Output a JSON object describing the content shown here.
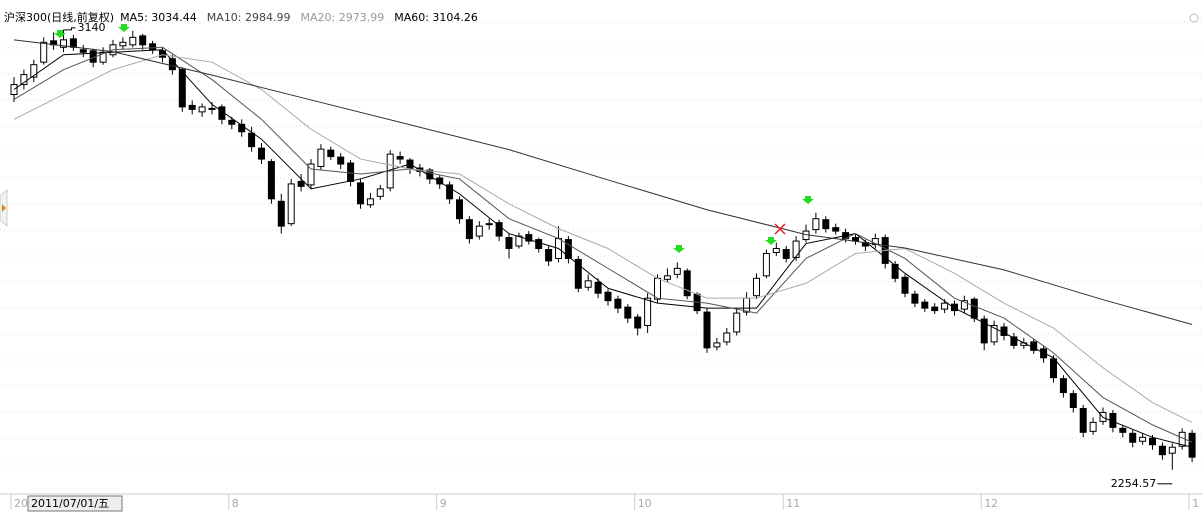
{
  "chart_data": {
    "type": "candlestick",
    "title": "沪深300(日线,前复权)",
    "cursor_label": "2011/07/01/五",
    "categories": [
      "20",
      null,
      null,
      null,
      null,
      null,
      null,
      null,
      null,
      null,
      null,
      null,
      null,
      null,
      null,
      null,
      null,
      null,
      null,
      null,
      null,
      null,
      "8",
      null,
      null,
      null,
      null,
      null,
      null,
      null,
      null,
      null,
      null,
      null,
      null,
      null,
      null,
      null,
      null,
      null,
      null,
      null,
      null,
      "9",
      null,
      null,
      null,
      null,
      null,
      null,
      null,
      null,
      null,
      null,
      null,
      null,
      null,
      null,
      null,
      null,
      null,
      null,
      null,
      "10",
      null,
      null,
      null,
      null,
      null,
      null,
      null,
      null,
      null,
      null,
      null,
      null,
      null,
      null,
      "11",
      null,
      null,
      null,
      null,
      null,
      null,
      null,
      null,
      null,
      null,
      null,
      null,
      null,
      null,
      null,
      null,
      null,
      null,
      null,
      "12",
      null,
      null,
      null,
      null,
      null,
      null,
      null,
      null,
      null,
      null,
      null,
      null,
      null,
      null,
      null,
      null,
      null,
      null,
      null,
      null,
      "1"
    ],
    "candles": [
      [
        3010,
        3045,
        2995,
        3030
      ],
      [
        3030,
        3060,
        3020,
        3050
      ],
      [
        3045,
        3080,
        3035,
        3070
      ],
      [
        3075,
        3125,
        3070,
        3115
      ],
      [
        3118,
        3135,
        3100,
        3110
      ],
      [
        3105,
        3140,
        3095,
        3120
      ],
      [
        3122,
        3130,
        3098,
        3105
      ],
      [
        3100,
        3110,
        3085,
        3095
      ],
      [
        3098,
        3102,
        3065,
        3075
      ],
      [
        3075,
        3105,
        3070,
        3095
      ],
      [
        3090,
        3120,
        3085,
        3110
      ],
      [
        3108,
        3125,
        3100,
        3115
      ],
      [
        3110,
        3138,
        3105,
        3125
      ],
      [
        3128,
        3132,
        3100,
        3110
      ],
      [
        3112,
        3118,
        3092,
        3100
      ],
      [
        3098,
        3105,
        3075,
        3085
      ],
      [
        3082,
        3090,
        3050,
        3060
      ],
      [
        3060,
        3065,
        2975,
        2985
      ],
      [
        2988,
        2998,
        2970,
        2980
      ],
      [
        2975,
        2992,
        2965,
        2985
      ],
      [
        2982,
        2995,
        2970,
        2980
      ],
      [
        2985,
        2990,
        2950,
        2960
      ],
      [
        2958,
        2965,
        2940,
        2950
      ],
      [
        2950,
        2960,
        2925,
        2935
      ],
      [
        2932,
        2945,
        2895,
        2905
      ],
      [
        2902,
        2912,
        2870,
        2880
      ],
      [
        2875,
        2880,
        2790,
        2800
      ],
      [
        2795,
        2810,
        2730,
        2745
      ],
      [
        2750,
        2840,
        2745,
        2830
      ],
      [
        2835,
        2850,
        2815,
        2825
      ],
      [
        2828,
        2880,
        2820,
        2870
      ],
      [
        2865,
        2910,
        2858,
        2900
      ],
      [
        2898,
        2905,
        2878,
        2885
      ],
      [
        2884,
        2892,
        2860,
        2870
      ],
      [
        2872,
        2878,
        2825,
        2835
      ],
      [
        2832,
        2840,
        2780,
        2790
      ],
      [
        2788,
        2812,
        2782,
        2800
      ],
      [
        2805,
        2828,
        2798,
        2820
      ],
      [
        2822,
        2898,
        2815,
        2890
      ],
      [
        2885,
        2895,
        2870,
        2880
      ],
      [
        2878,
        2882,
        2850,
        2860
      ],
      [
        2862,
        2870,
        2845,
        2855
      ],
      [
        2858,
        2862,
        2830,
        2840
      ],
      [
        2842,
        2848,
        2820,
        2830
      ],
      [
        2828,
        2835,
        2790,
        2800
      ],
      [
        2798,
        2805,
        2750,
        2760
      ],
      [
        2758,
        2765,
        2710,
        2720
      ],
      [
        2725,
        2755,
        2718,
        2745
      ],
      [
        2748,
        2760,
        2738,
        2750
      ],
      [
        2752,
        2758,
        2715,
        2725
      ],
      [
        2722,
        2730,
        2680,
        2700
      ],
      [
        2705,
        2732,
        2700,
        2725
      ],
      [
        2728,
        2735,
        2708,
        2715
      ],
      [
        2718,
        2722,
        2692,
        2700
      ],
      [
        2698,
        2705,
        2665,
        2675
      ],
      [
        2680,
        2745,
        2672,
        2720
      ],
      [
        2718,
        2725,
        2670,
        2680
      ],
      [
        2678,
        2685,
        2612,
        2620
      ],
      [
        2622,
        2648,
        2615,
        2635
      ],
      [
        2632,
        2640,
        2600,
        2610
      ],
      [
        2612,
        2618,
        2585,
        2595
      ],
      [
        2598,
        2605,
        2570,
        2580
      ],
      [
        2582,
        2588,
        2550,
        2560
      ],
      [
        2562,
        2568,
        2525,
        2540
      ],
      [
        2545,
        2610,
        2530,
        2600
      ],
      [
        2598,
        2648,
        2590,
        2640
      ],
      [
        2638,
        2660,
        2632,
        2645
      ],
      [
        2648,
        2672,
        2640,
        2660
      ],
      [
        2655,
        2660,
        2598,
        2605
      ],
      [
        2608,
        2612,
        2568,
        2575
      ],
      [
        2572,
        2580,
        2490,
        2500
      ],
      [
        2502,
        2520,
        2495,
        2510
      ],
      [
        2512,
        2540,
        2505,
        2530
      ],
      [
        2532,
        2580,
        2525,
        2570
      ],
      [
        2572,
        2612,
        2565,
        2600
      ],
      [
        2605,
        2650,
        2598,
        2640
      ],
      [
        2645,
        2698,
        2640,
        2690
      ],
      [
        2692,
        2712,
        2685,
        2700
      ],
      [
        2698,
        2705,
        2672,
        2680
      ],
      [
        2682,
        2725,
        2675,
        2715
      ],
      [
        2718,
        2748,
        2712,
        2735
      ],
      [
        2738,
        2772,
        2730,
        2760
      ],
      [
        2758,
        2765,
        2732,
        2740
      ],
      [
        2742,
        2750,
        2728,
        2735
      ],
      [
        2732,
        2740,
        2712,
        2720
      ],
      [
        2722,
        2728,
        2708,
        2715
      ],
      [
        2712,
        2718,
        2695,
        2705
      ],
      [
        2708,
        2730,
        2700,
        2720
      ],
      [
        2722,
        2728,
        2660,
        2670
      ],
      [
        2668,
        2675,
        2632,
        2640
      ],
      [
        2642,
        2648,
        2602,
        2610
      ],
      [
        2608,
        2615,
        2582,
        2590
      ],
      [
        2592,
        2598,
        2572,
        2580
      ],
      [
        2582,
        2590,
        2568,
        2575
      ],
      [
        2578,
        2598,
        2570,
        2590
      ],
      [
        2588,
        2595,
        2565,
        2575
      ],
      [
        2578,
        2605,
        2570,
        2595
      ],
      [
        2598,
        2602,
        2552,
        2560
      ],
      [
        2558,
        2565,
        2495,
        2510
      ],
      [
        2512,
        2555,
        2505,
        2545
      ],
      [
        2542,
        2550,
        2515,
        2525
      ],
      [
        2522,
        2530,
        2498,
        2505
      ],
      [
        2505,
        2520,
        2498,
        2510
      ],
      [
        2512,
        2518,
        2488,
        2495
      ],
      [
        2498,
        2505,
        2470,
        2480
      ],
      [
        2478,
        2485,
        2430,
        2440
      ],
      [
        2438,
        2445,
        2400,
        2410
      ],
      [
        2408,
        2415,
        2370,
        2380
      ],
      [
        2378,
        2385,
        2320,
        2330
      ],
      [
        2332,
        2360,
        2325,
        2350
      ],
      [
        2352,
        2380,
        2345,
        2370
      ],
      [
        2368,
        2375,
        2330,
        2340
      ],
      [
        2338,
        2345,
        2320,
        2330
      ],
      [
        2328,
        2335,
        2300,
        2310
      ],
      [
        2312,
        2328,
        2305,
        2320
      ],
      [
        2318,
        2325,
        2295,
        2305
      ],
      [
        2302,
        2310,
        2275,
        2285
      ],
      [
        2288,
        2308,
        2254.57,
        2300
      ],
      [
        2302,
        2338,
        2295,
        2330
      ],
      [
        2328,
        2335,
        2270,
        2280
      ]
    ],
    "up_color": "#ffffff",
    "down_color": "#000000",
    "ylim": [
      2226,
      3172
    ],
    "grid": true,
    "series": [
      {
        "name": "MA5: 3034.44",
        "color": "#000000",
        "x": [
          0,
          5,
          10,
          15,
          20,
          25,
          30,
          35,
          40,
          45,
          50,
          55,
          60,
          65,
          70,
          75,
          80,
          85,
          90,
          95,
          100,
          105,
          110,
          115,
          119
        ],
        "values": [
          3020,
          3090,
          3095,
          3100,
          2990,
          2920,
          2820,
          2840,
          2870,
          2810,
          2730,
          2700,
          2620,
          2590,
          2580,
          2580,
          2710,
          2730,
          2650,
          2580,
          2530,
          2480,
          2360,
          2320,
          2300
        ]
      },
      {
        "name": "MA10: 2984.99",
        "color": "#555555",
        "x": [
          0,
          5,
          10,
          15,
          20,
          25,
          30,
          35,
          40,
          45,
          50,
          55,
          60,
          65,
          70,
          75,
          80,
          85,
          90,
          95,
          100,
          105,
          110,
          115,
          119
        ],
        "values": [
          3000,
          3060,
          3100,
          3105,
          3040,
          2960,
          2860,
          2850,
          2860,
          2840,
          2760,
          2720,
          2660,
          2600,
          2590,
          2570,
          2680,
          2730,
          2680,
          2600,
          2560,
          2490,
          2400,
          2345,
          2310
        ]
      },
      {
        "name": "MA20: 2973.99",
        "color": "#aaaaaa",
        "x": [
          0,
          5,
          10,
          15,
          20,
          25,
          30,
          35,
          40,
          45,
          50,
          55,
          60,
          65,
          70,
          75,
          80,
          85,
          90,
          95,
          100,
          105,
          110,
          115,
          119
        ],
        "values": [
          2960,
          3010,
          3060,
          3090,
          3075,
          3020,
          2940,
          2880,
          2860,
          2850,
          2790,
          2740,
          2700,
          2640,
          2600,
          2600,
          2630,
          2690,
          2700,
          2650,
          2590,
          2540,
          2460,
          2390,
          2350
        ]
      },
      {
        "name": "MA60: 3104.26",
        "color": "#333333",
        "x": [
          0,
          10,
          20,
          30,
          40,
          50,
          60,
          70,
          80,
          90,
          100,
          110,
          119
        ],
        "values": [
          3120,
          3096,
          3049,
          2999,
          2949,
          2899,
          2838,
          2778,
          2728,
          2701,
          2657,
          2597,
          2547
        ]
      }
    ]
  }
}
